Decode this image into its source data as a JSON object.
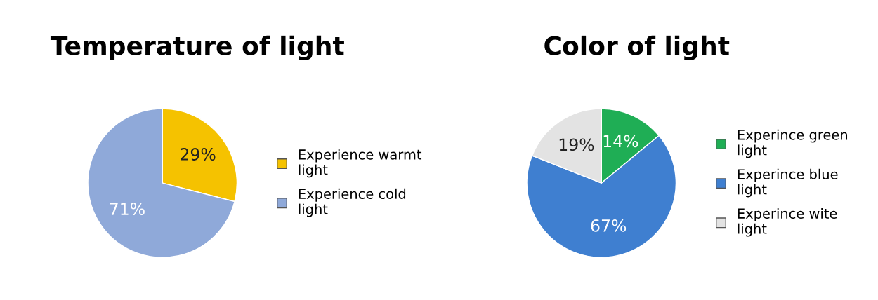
{
  "chart_data": [
    {
      "type": "pie",
      "title": "Temperature of light",
      "categories": [
        "Experience warmt light",
        "Experience cold light"
      ],
      "values": [
        29,
        71
      ],
      "value_labels": [
        "29%",
        "71%"
      ],
      "colors": [
        "#f5c200",
        "#8fa9d9"
      ],
      "legend": "right"
    },
    {
      "type": "pie",
      "title": "Color of light",
      "categories": [
        "Experince green light",
        "Experince blue light",
        "Experince wite light"
      ],
      "values": [
        14,
        67,
        19
      ],
      "value_labels": [
        "14%",
        "67%",
        "19%"
      ],
      "colors": [
        "#1fae55",
        "#3f7fd0",
        "#e3e3e3"
      ],
      "legend": "right"
    }
  ]
}
